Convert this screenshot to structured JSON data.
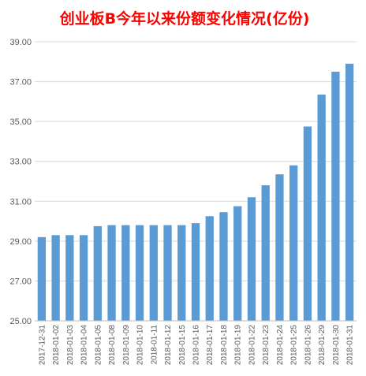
{
  "chart_data": {
    "type": "bar",
    "title": "创业板B今年以来份额变化情况(亿份)",
    "title_color": "#ff0000",
    "bar_color": "#5b9bd5",
    "grid_color": "#d9d9d9",
    "grid": true,
    "ylim": [
      25,
      39
    ],
    "yticks": [
      "25.00",
      "27.00",
      "29.00",
      "31.00",
      "33.00",
      "35.00",
      "37.00",
      "39.00"
    ],
    "categories": [
      "2017-12-31",
      "2018-01-02",
      "2018-01-03",
      "2018-01-04",
      "2018-01-05",
      "2018-01-08",
      "2018-01-09",
      "2018-01-10",
      "2018-01-11",
      "2018-01-12",
      "2018-01-15",
      "2018-01-16",
      "2018-01-17",
      "2018-01-18",
      "2018-01-19",
      "2018-01-22",
      "2018-01-23",
      "2018-01-24",
      "2018-01-25",
      "2018-01-26",
      "2018-01-29",
      "2018-01-30",
      "2018-01-31"
    ],
    "values": [
      29.2,
      29.3,
      29.3,
      29.3,
      29.75,
      29.8,
      29.8,
      29.8,
      29.8,
      29.8,
      29.8,
      29.9,
      30.25,
      30.45,
      30.75,
      31.2,
      31.8,
      32.35,
      32.8,
      34.75,
      36.35,
      37.5,
      37.9
    ]
  }
}
